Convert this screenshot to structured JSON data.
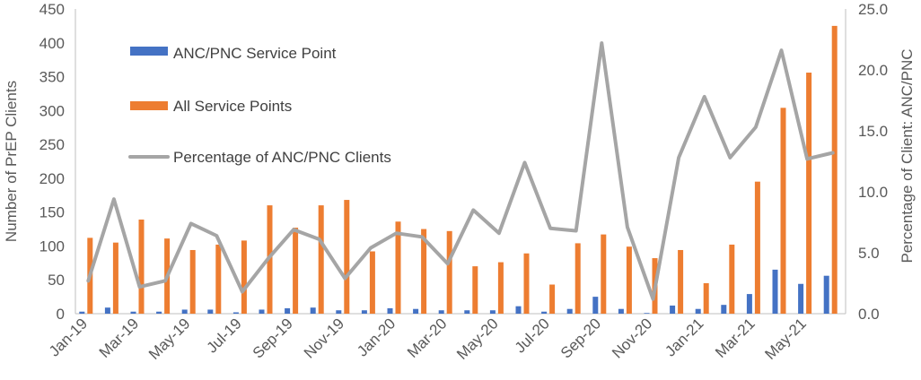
{
  "chart_data": {
    "type": "bar",
    "categories": [
      "Jan-19",
      "Feb-19",
      "Mar-19",
      "Apr-19",
      "May-19",
      "Jun-19",
      "Jul-19",
      "Aug-19",
      "Sep-19",
      "Oct-19",
      "Nov-19",
      "Dec-19",
      "Jan-20",
      "Feb-20",
      "Mar-20",
      "Apr-20",
      "May-20",
      "Jun-20",
      "Jul-20",
      "Aug-20",
      "Sep-20",
      "Oct-20",
      "Nov-20",
      "Dec-20",
      "Jan-21",
      "Feb-21",
      "Mar-21",
      "Apr-21",
      "May-21",
      "Jun-21"
    ],
    "x_tick_labels": [
      "Jan-19",
      "Mar-19",
      "May-19",
      "Jul-19",
      "Sep-19",
      "Nov-19",
      "Jan-20",
      "Mar-20",
      "May-20",
      "Jul-20",
      "Sep-20",
      "Nov-20",
      "Jan-21",
      "Mar-21",
      "May-21"
    ],
    "series": [
      {
        "name": "ANC/PNC Service Point",
        "type": "bar",
        "axis": "left",
        "color": "#4472C4",
        "values": [
          3,
          9,
          3,
          3,
          6,
          6,
          2,
          6,
          8,
          9,
          5,
          5,
          8,
          7,
          5,
          5,
          5,
          11,
          3,
          7,
          25,
          7,
          1,
          12,
          7,
          13,
          29,
          65,
          44,
          56
        ]
      },
      {
        "name": "All Service Points",
        "type": "bar",
        "axis": "left",
        "color": "#ED7D31",
        "values": [
          112,
          105,
          139,
          111,
          94,
          102,
          108,
          160,
          127,
          160,
          168,
          92,
          136,
          125,
          122,
          70,
          76,
          89,
          43,
          104,
          117,
          99,
          82,
          94,
          45,
          102,
          195,
          304,
          356,
          425
        ]
      },
      {
        "name": "Percentage of ANC/PNC Clients",
        "type": "line",
        "axis": "right",
        "color": "#A5A5A5",
        "values": [
          2.7,
          9.4,
          2.2,
          2.7,
          7.4,
          6.4,
          1.8,
          4.5,
          6.9,
          6.1,
          2.9,
          5.4,
          6.6,
          6.3,
          4.1,
          8.5,
          6.6,
          12.4,
          7.0,
          6.8,
          22.2,
          7.1,
          1.2,
          12.8,
          17.8,
          12.8,
          15.3,
          21.6,
          12.7,
          13.2
        ]
      }
    ],
    "ylabel": "Number of PrEP Clients",
    "y2label": "Percentage of Client: ANC/PNC",
    "ylim": [
      0,
      450
    ],
    "y_ticks": [
      "0",
      "50",
      "100",
      "150",
      "200",
      "250",
      "300",
      "350",
      "400",
      "450"
    ],
    "y2lim": [
      0,
      25
    ],
    "y2_ticks": [
      "0.0",
      "5.0",
      "10.0",
      "15.0",
      "20.0",
      "25.0"
    ],
    "grid": false,
    "legend_position": "top-left inside"
  }
}
